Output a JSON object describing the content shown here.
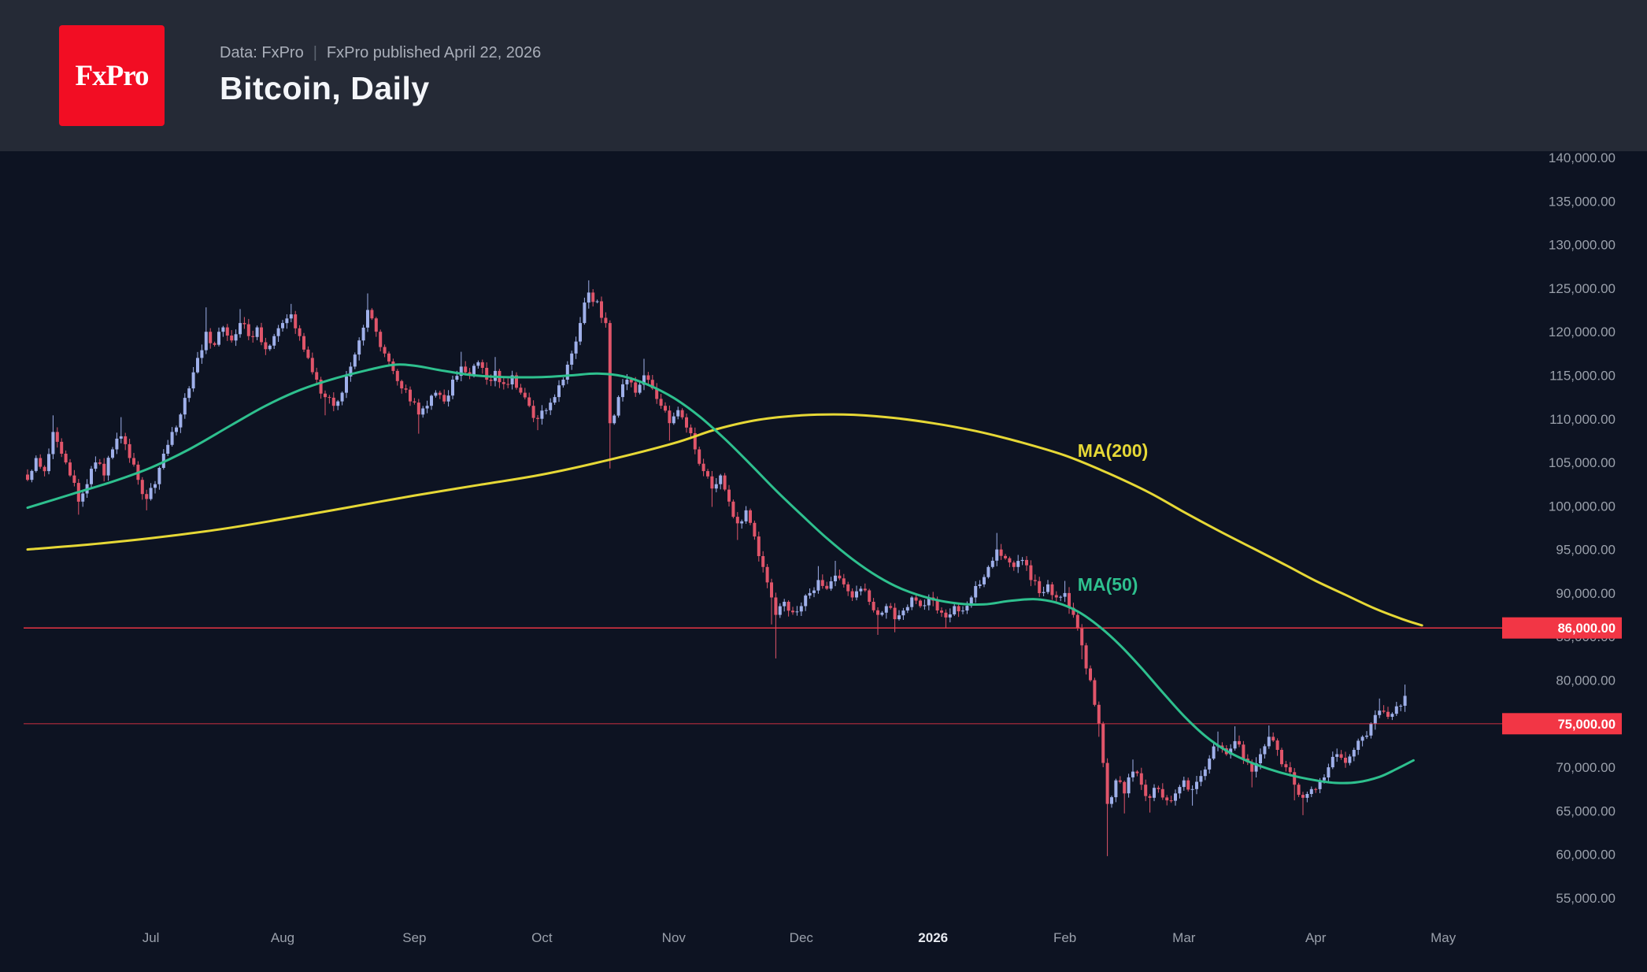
{
  "header": {
    "logo_text": "FxPro",
    "source_label": "Data: FxPro",
    "separator": "|",
    "published": "FxPro published April 22, 2026",
    "title": "Bitcoin, Daily"
  },
  "colors": {
    "background": "#0d1322",
    "header_bg": "#252a36",
    "candle_up": "#9fb0ea",
    "candle_down": "#e0556a",
    "level_red": "#f23645",
    "axis_text": "#9aa0ab",
    "month_emphasis": "#e7eaf0"
  },
  "chart_data": {
    "type": "candlestick",
    "symbol": "Bitcoin",
    "timeframe": "Daily",
    "title": "Bitcoin, Daily",
    "y_axis": {
      "min": 55000,
      "max": 140000,
      "tick_step": 5000,
      "side": "right",
      "format": "#,##0.00"
    },
    "x_axis": {
      "month_ticks": [
        [
          "Jul",
          29,
          false
        ],
        [
          "Aug",
          60,
          false
        ],
        [
          "Sep",
          91,
          false
        ],
        [
          "Oct",
          121,
          false
        ],
        [
          "Nov",
          152,
          false
        ],
        [
          "Dec",
          182,
          false
        ],
        [
          "2026",
          213,
          true
        ],
        [
          "Feb",
          244,
          false
        ],
        [
          "Mar",
          272,
          false
        ],
        [
          "Apr",
          303,
          false
        ],
        [
          "May",
          333,
          false
        ]
      ]
    },
    "levels": [
      {
        "price": 86000,
        "label": "86,000.00",
        "line_opacity": 0.95
      },
      {
        "price": 75000,
        "label": "75,000.00",
        "line_opacity": 0.55
      }
    ],
    "overlays": [
      {
        "name": "MA(200)",
        "color": "#e6d836",
        "label_anchor": {
          "day": 247,
          "price": 106200
        },
        "points": [
          [
            0,
            95000
          ],
          [
            15,
            95600
          ],
          [
            29,
            96300
          ],
          [
            45,
            97300
          ],
          [
            60,
            98500
          ],
          [
            75,
            99800
          ],
          [
            91,
            101200
          ],
          [
            106,
            102400
          ],
          [
            121,
            103600
          ],
          [
            136,
            105200
          ],
          [
            152,
            107200
          ],
          [
            162,
            108800
          ],
          [
            172,
            109900
          ],
          [
            182,
            110400
          ],
          [
            192,
            110500
          ],
          [
            202,
            110200
          ],
          [
            213,
            109500
          ],
          [
            223,
            108600
          ],
          [
            233,
            107400
          ],
          [
            244,
            105800
          ],
          [
            254,
            103800
          ],
          [
            264,
            101500
          ],
          [
            272,
            99300
          ],
          [
            280,
            97200
          ],
          [
            288,
            95200
          ],
          [
            296,
            93200
          ],
          [
            303,
            91400
          ],
          [
            310,
            89800
          ],
          [
            317,
            88200
          ],
          [
            324,
            86900
          ],
          [
            328,
            86300
          ]
        ]
      },
      {
        "name": "MA(50)",
        "color": "#2ec08e",
        "label_anchor": {
          "day": 247,
          "price": 90800
        },
        "points": [
          [
            0,
            99800
          ],
          [
            10,
            101300
          ],
          [
            20,
            102800
          ],
          [
            29,
            104400
          ],
          [
            38,
            106500
          ],
          [
            48,
            109300
          ],
          [
            56,
            111500
          ],
          [
            64,
            113300
          ],
          [
            72,
            114600
          ],
          [
            80,
            115600
          ],
          [
            86,
            116200
          ],
          [
            91,
            116100
          ],
          [
            98,
            115500
          ],
          [
            105,
            115000
          ],
          [
            112,
            114800
          ],
          [
            121,
            114800
          ],
          [
            128,
            115000
          ],
          [
            134,
            115200
          ],
          [
            140,
            114900
          ],
          [
            146,
            113900
          ],
          [
            152,
            112400
          ],
          [
            158,
            110300
          ],
          [
            164,
            107700
          ],
          [
            170,
            104800
          ],
          [
            176,
            101800
          ],
          [
            182,
            99000
          ],
          [
            188,
            96300
          ],
          [
            194,
            93900
          ],
          [
            200,
            91900
          ],
          [
            206,
            90400
          ],
          [
            213,
            89300
          ],
          [
            219,
            88800
          ],
          [
            225,
            88700
          ],
          [
            231,
            89100
          ],
          [
            237,
            89300
          ],
          [
            242,
            88900
          ],
          [
            247,
            87900
          ],
          [
            252,
            86200
          ],
          [
            257,
            84000
          ],
          [
            262,
            81400
          ],
          [
            267,
            78600
          ],
          [
            272,
            75900
          ],
          [
            277,
            73600
          ],
          [
            282,
            71900
          ],
          [
            287,
            70700
          ],
          [
            292,
            69800
          ],
          [
            297,
            69100
          ],
          [
            303,
            68500
          ],
          [
            308,
            68200
          ],
          [
            313,
            68300
          ],
          [
            318,
            68900
          ],
          [
            322,
            69800
          ],
          [
            326,
            70800
          ]
        ]
      }
    ],
    "price_keypoints": [
      [
        0,
        103000,
        null,
        null
      ],
      [
        2,
        105500,
        null,
        null
      ],
      [
        4,
        104000,
        null,
        null
      ],
      [
        6,
        108500,
        110400,
        null
      ],
      [
        8,
        106000,
        null,
        null
      ],
      [
        10,
        103500,
        null,
        null
      ],
      [
        12,
        100500,
        null,
        99000
      ],
      [
        14,
        102500,
        null,
        null
      ],
      [
        16,
        105000,
        null,
        null
      ],
      [
        18,
        103500,
        null,
        null
      ],
      [
        20,
        106500,
        null,
        null
      ],
      [
        22,
        108000,
        110200,
        null
      ],
      [
        24,
        105500,
        null,
        null
      ],
      [
        26,
        103000,
        null,
        null
      ],
      [
        28,
        100800,
        null,
        99500
      ],
      [
        30,
        102500,
        null,
        null
      ],
      [
        32,
        106000,
        null,
        null
      ],
      [
        34,
        108500,
        null,
        null
      ],
      [
        36,
        110500,
        null,
        null
      ],
      [
        38,
        113500,
        null,
        null
      ],
      [
        40,
        117000,
        null,
        null
      ],
      [
        42,
        120000,
        122800,
        null
      ],
      [
        44,
        118500,
        null,
        null
      ],
      [
        46,
        120500,
        null,
        null
      ],
      [
        48,
        119000,
        null,
        null
      ],
      [
        50,
        121000,
        122600,
        null
      ],
      [
        52,
        119500,
        null,
        null
      ],
      [
        54,
        120500,
        null,
        null
      ],
      [
        56,
        118000,
        null,
        null
      ],
      [
        58,
        119500,
        null,
        null
      ],
      [
        60,
        121000,
        null,
        null
      ],
      [
        62,
        122000,
        123200,
        null
      ],
      [
        64,
        119500,
        null,
        null
      ],
      [
        66,
        117000,
        null,
        null
      ],
      [
        68,
        114500,
        null,
        null
      ],
      [
        70,
        112500,
        null,
        110400
      ],
      [
        72,
        111500,
        null,
        null
      ],
      [
        74,
        113000,
        null,
        null
      ],
      [
        76,
        116000,
        null,
        null
      ],
      [
        78,
        119000,
        null,
        null
      ],
      [
        80,
        122500,
        124400,
        null
      ],
      [
        82,
        120000,
        null,
        null
      ],
      [
        84,
        117500,
        null,
        null
      ],
      [
        86,
        115500,
        null,
        null
      ],
      [
        88,
        113500,
        null,
        null
      ],
      [
        90,
        112000,
        null,
        null
      ],
      [
        92,
        110500,
        null,
        108300
      ],
      [
        94,
        111500,
        null,
        null
      ],
      [
        96,
        113000,
        null,
        null
      ],
      [
        98,
        112000,
        null,
        null
      ],
      [
        100,
        114500,
        null,
        null
      ],
      [
        102,
        116000,
        117700,
        null
      ],
      [
        104,
        115000,
        null,
        null
      ],
      [
        106,
        116500,
        null,
        null
      ],
      [
        108,
        114500,
        null,
        null
      ],
      [
        110,
        115500,
        117100,
        null
      ],
      [
        112,
        114000,
        null,
        null
      ],
      [
        114,
        115000,
        null,
        null
      ],
      [
        116,
        113000,
        null,
        null
      ],
      [
        118,
        111500,
        null,
        null
      ],
      [
        120,
        110000,
        null,
        108700
      ],
      [
        122,
        111000,
        null,
        null
      ],
      [
        124,
        112500,
        null,
        null
      ],
      [
        126,
        114500,
        null,
        null
      ],
      [
        128,
        117500,
        null,
        null
      ],
      [
        130,
        121000,
        null,
        null
      ],
      [
        132,
        124500,
        125900,
        null
      ],
      [
        134,
        123500,
        null,
        null
      ],
      [
        136,
        121000,
        null,
        null
      ],
      [
        137,
        109500,
        null,
        104300
      ],
      [
        139,
        112500,
        null,
        null
      ],
      [
        141,
        114500,
        null,
        null
      ],
      [
        143,
        113000,
        null,
        null
      ],
      [
        145,
        115000,
        116900,
        null
      ],
      [
        147,
        113500,
        null,
        null
      ],
      [
        149,
        111500,
        null,
        null
      ],
      [
        151,
        109500,
        null,
        107500
      ],
      [
        153,
        111000,
        null,
        null
      ],
      [
        155,
        109000,
        null,
        null
      ],
      [
        157,
        106500,
        null,
        null
      ],
      [
        159,
        104000,
        null,
        null
      ],
      [
        161,
        102000,
        null,
        99900
      ],
      [
        163,
        103500,
        null,
        null
      ],
      [
        165,
        100500,
        null,
        null
      ],
      [
        167,
        98000,
        null,
        96100
      ],
      [
        169,
        99500,
        null,
        null
      ],
      [
        171,
        96500,
        null,
        null
      ],
      [
        173,
        93000,
        null,
        null
      ],
      [
        175,
        89500,
        null,
        86400
      ],
      [
        176,
        87500,
        null,
        82500
      ],
      [
        178,
        89000,
        null,
        null
      ],
      [
        180,
        87800,
        null,
        null
      ],
      [
        182,
        88500,
        null,
        null
      ],
      [
        184,
        90000,
        null,
        null
      ],
      [
        186,
        91500,
        93100,
        null
      ],
      [
        188,
        90500,
        null,
        null
      ],
      [
        190,
        92000,
        93700,
        null
      ],
      [
        192,
        91000,
        null,
        null
      ],
      [
        194,
        89500,
        null,
        null
      ],
      [
        196,
        90500,
        null,
        null
      ],
      [
        198,
        89000,
        null,
        null
      ],
      [
        200,
        87500,
        null,
        85200
      ],
      [
        202,
        88500,
        null,
        null
      ],
      [
        204,
        87000,
        null,
        85500
      ],
      [
        206,
        88000,
        null,
        null
      ],
      [
        208,
        89500,
        null,
        null
      ],
      [
        210,
        88500,
        null,
        null
      ],
      [
        212,
        89500,
        null,
        null
      ],
      [
        214,
        88000,
        null,
        null
      ],
      [
        216,
        87200,
        null,
        86000
      ],
      [
        218,
        88500,
        null,
        null
      ],
      [
        220,
        88000,
        null,
        null
      ],
      [
        222,
        89500,
        null,
        null
      ],
      [
        224,
        91000,
        null,
        null
      ],
      [
        226,
        93000,
        null,
        null
      ],
      [
        228,
        95000,
        96900,
        null
      ],
      [
        230,
        94000,
        null,
        null
      ],
      [
        232,
        93000,
        null,
        null
      ],
      [
        234,
        93800,
        null,
        null
      ],
      [
        236,
        91500,
        null,
        null
      ],
      [
        238,
        90000,
        null,
        null
      ],
      [
        240,
        91000,
        null,
        null
      ],
      [
        242,
        89500,
        null,
        null
      ],
      [
        244,
        90000,
        91400,
        null
      ],
      [
        246,
        87500,
        null,
        null
      ],
      [
        248,
        84000,
        null,
        82400
      ],
      [
        250,
        80000,
        null,
        null
      ],
      [
        252,
        75000,
        null,
        73500
      ],
      [
        253,
        70500,
        null,
        null
      ],
      [
        254,
        65800,
        null,
        59800
      ],
      [
        256,
        68500,
        null,
        null
      ],
      [
        258,
        67000,
        null,
        64700
      ],
      [
        260,
        69500,
        70900,
        null
      ],
      [
        262,
        68000,
        null,
        null
      ],
      [
        264,
        66500,
        null,
        64800
      ],
      [
        266,
        67500,
        null,
        null
      ],
      [
        268,
        66200,
        null,
        null
      ],
      [
        270,
        67000,
        null,
        null
      ],
      [
        272,
        68500,
        null,
        null
      ],
      [
        274,
        67500,
        null,
        65600
      ],
      [
        276,
        69000,
        null,
        null
      ],
      [
        278,
        71000,
        null,
        null
      ],
      [
        280,
        72500,
        74100,
        null
      ],
      [
        282,
        71500,
        null,
        null
      ],
      [
        284,
        73000,
        74700,
        null
      ],
      [
        286,
        71000,
        null,
        null
      ],
      [
        288,
        69500,
        null,
        67700
      ],
      [
        290,
        71500,
        null,
        null
      ],
      [
        292,
        73500,
        74800,
        null
      ],
      [
        294,
        72000,
        null,
        null
      ],
      [
        296,
        70000,
        null,
        null
      ],
      [
        298,
        68000,
        null,
        66200
      ],
      [
        300,
        66500,
        null,
        64500
      ],
      [
        302,
        67500,
        null,
        null
      ],
      [
        304,
        68500,
        null,
        null
      ],
      [
        306,
        70000,
        null,
        null
      ],
      [
        308,
        71500,
        null,
        null
      ],
      [
        310,
        70500,
        null,
        null
      ],
      [
        312,
        72000,
        null,
        null
      ],
      [
        314,
        73500,
        null,
        null
      ],
      [
        316,
        75000,
        null,
        null
      ],
      [
        318,
        76500,
        77900,
        null
      ],
      [
        320,
        75800,
        null,
        null
      ],
      [
        322,
        77000,
        null,
        null
      ],
      [
        324,
        78200,
        79500,
        null
      ]
    ]
  }
}
